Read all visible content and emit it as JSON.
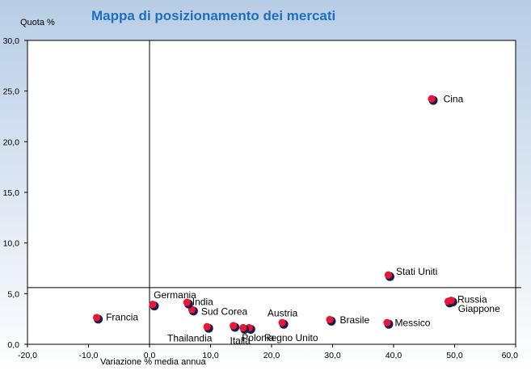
{
  "chart_data": {
    "type": "scatter",
    "title": "Mappa di posizionamento dei mercati",
    "xlabel": "Variazione % media annua",
    "ylabel": "Quota  %",
    "xlim": [
      -20,
      60
    ],
    "ylim": [
      0,
      30
    ],
    "x_ticks": [
      "-20,0",
      "-10,0",
      "0,0",
      "10,0",
      "20,0",
      "30,0",
      "40,0",
      "50,0",
      "60,0"
    ],
    "y_ticks": [
      "0,0",
      "5,0",
      "10,0",
      "15,0",
      "20,0",
      "25,0",
      "30,0"
    ],
    "reference_lines": {
      "x": 0,
      "y": 5.6
    },
    "grid": false,
    "colors": {
      "background_top": "#b8cde6",
      "background_bottom": "#ffffff",
      "marker_fill": "#e8173a",
      "marker_shadow": "#1c1c4a",
      "title_color": "#1f6fbf"
    },
    "points": [
      {
        "label": "Cina",
        "x": 46.3,
        "y": 24.2
      },
      {
        "label": "Stati Uniti",
        "x": 39.2,
        "y": 6.8
      },
      {
        "label": "Russia",
        "x": 49.0,
        "y": 4.2
      },
      {
        "label": "Giappone",
        "x": 49.5,
        "y": 4.3
      },
      {
        "label": "Messico",
        "x": 39.0,
        "y": 2.1
      },
      {
        "label": "Brasile",
        "x": 29.6,
        "y": 2.4
      },
      {
        "label": "Austria",
        "x": 21.8,
        "y": 2.1
      },
      {
        "label": "Regno Unito",
        "x": 16.4,
        "y": 1.6
      },
      {
        "label": "Polonia",
        "x": 15.4,
        "y": 1.6
      },
      {
        "label": "Italia",
        "x": 13.8,
        "y": 1.8
      },
      {
        "label": "Thailandia",
        "x": 9.5,
        "y": 1.7
      },
      {
        "label": "Sud Corea",
        "x": 7.0,
        "y": 3.4
      },
      {
        "label": "India",
        "x": 6.2,
        "y": 4.1
      },
      {
        "label": "Germania",
        "x": 0.6,
        "y": 3.9
      },
      {
        "label": "Francia",
        "x": -8.6,
        "y": 2.6
      }
    ]
  }
}
